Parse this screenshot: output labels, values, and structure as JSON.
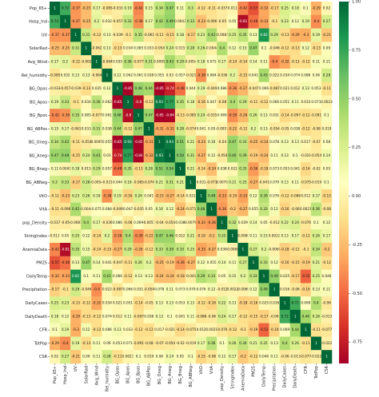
{
  "chart_data": {
    "type": "heatmap",
    "x_categories": [
      "Pop_65+",
      "Hosp_Ind",
      "UV",
      "SolarRad",
      "Avg_Wind",
      "Rel_humidity",
      "BG_Opos",
      "BG_Apos",
      "BG_Bpos",
      "BG_ABPos",
      "BG_Oneg",
      "BG_Aneg",
      "BG_Bneg",
      "BG_ABNeg",
      "VitD",
      "VitA",
      "pop_Density",
      "StringIndex",
      "AnemiaData",
      "PM25",
      "DailyTemp",
      "Precipitation",
      "DailyCases",
      "DailyDeath",
      "CFR",
      "TotPop",
      "CSR"
    ],
    "y_categories": [
      "Pop_65+",
      "Hosp_Ind",
      "UV",
      "SolarRad",
      "Avg_Wind",
      "Rel_humidity",
      "BG_Opos",
      "BG_Apos",
      "BG_Bpos",
      "BG_ABPos",
      "BG_Oneg",
      "BG_Aneg",
      "BG_Bneg",
      "BG_ABNeg",
      "VitD",
      "VitA",
      "pop_Density",
      "StringIndex",
      "AnemiaData",
      "PM25",
      "DailyTemp",
      "Precipitation",
      "DailyCases",
      "DailyDeath",
      "CFR",
      "TotPop",
      "CSR"
    ],
    "values": [
      [
        1,
        0.72,
        -0.37,
        -0.25,
        0.17,
        -0.085,
        -0.033,
        0.19,
        -0.42,
        0.15,
        0.34,
        0.47,
        0.11,
        0.3,
        -0.12,
        -0.11,
        -0.037,
        0.011,
        -0.42,
        -0.57,
        -0.32,
        -0.17,
        0.25,
        0.18,
        0.1,
        -0.29,
        0.02
      ],
      [
        0.72,
        1,
        -0.37,
        -0.25,
        0.2,
        0.032,
        -0.057,
        0.33,
        -0.38,
        0.17,
        0.42,
        0.49,
        0.0043,
        0.33,
        -0.23,
        -0.096,
        -0.05,
        0.05,
        -0.81,
        -0.48,
        -0.33,
        -0.1,
        0.23,
        0.12,
        0.19,
        -0.4,
        0.27
      ],
      [
        -0.37,
        -0.37,
        1,
        0.31,
        -0.12,
        0.13,
        -0.039,
        -0.1,
        0.35,
        -0.061,
        -0.11,
        -0.15,
        0.18,
        -0.17,
        0.23,
        0.42,
        -0.0081,
        0.25,
        0.35,
        0.13,
        0.82,
        0.29,
        -0.13,
        -0.29,
        -0.3,
        0.19,
        -0.21
      ],
      [
        -0.25,
        -0.25,
        0.31,
        1,
        -0.062,
        0.13,
        -0.13,
        0.034,
        0.085,
        0.033,
        -0.054,
        0.24,
        0.015,
        0.28,
        0.26,
        -0.0044,
        0.4,
        0.12,
        0.15,
        0.47,
        0.1,
        -0.046,
        -0.12,
        -0.13,
        0.12,
        -0.13,
        0.09
      ],
      [
        0.17,
        0.2,
        -0.12,
        -0.062,
        1,
        -0.064,
        0.035,
        0.36,
        -0.077,
        0.31,
        0.0095,
        0.43,
        0.29,
        -0.0054,
        0.18,
        0.075,
        0.17,
        -0.14,
        -0.14,
        0.14,
        0.11,
        -0.4,
        -0.32,
        -0.12,
        -0.12,
        0.11,
        0.11
      ],
      [
        -0.085,
        0.032,
        0.13,
        0.13,
        -0.064,
        1,
        0.12,
        0.062,
        0.061,
        0.038,
        0.055,
        0.03,
        0.057,
        -0.021,
        -0.38,
        0.084,
        -0.036,
        0.2,
        -0.15,
        0.041,
        0.43,
        0.022,
        0.034,
        0.074,
        0.086,
        0.06,
        0.28
      ],
      [
        -0.033,
        -0.057,
        -0.039,
        -0.13,
        0.035,
        0.12,
        1,
        -0.85,
        0.48,
        0.44,
        -0.85,
        -0.74,
        -0.48,
        0.044,
        0.19,
        -0.049,
        0.086,
        -0.36,
        -0.27,
        -0.047,
        0.066,
        -0.087,
        0.021,
        0.012,
        0.13,
        0.053,
        -0.11
      ],
      [
        0.19,
        0.33,
        -0.1,
        0.034,
        0.36,
        0.062,
        -0.85,
        1,
        -0.8,
        -0.12,
        0.93,
        0.77,
        0.35,
        0.18,
        -0.16,
        0.047,
        -0.08,
        0.4,
        0.29,
        -0.11,
        -0.12,
        0.066,
        0.051,
        0.11,
        0.033,
        0.071,
        0.0023
      ],
      [
        -0.42,
        -0.38,
        0.35,
        0.085,
        -0.077,
        0.061,
        0.48,
        -0.8,
        1,
        0.47,
        -0.85,
        -0.84,
        -0.13,
        -0.085,
        0.24,
        -0.035,
        0.069,
        -0.39,
        -0.26,
        0.26,
        0.13,
        0.031,
        -0.14,
        -0.097,
        -0.12,
        -0.091,
        0.1
      ],
      [
        0.15,
        0.17,
        -0.061,
        0.033,
        0.31,
        0.038,
        0.44,
        -0.12,
        0.47,
        1,
        -0.31,
        -0.32,
        0.28,
        -0.074,
        0.041,
        0.05,
        -0.0057,
        -0.22,
        -0.12,
        0.2,
        0.13,
        -0.054,
        -0.05,
        0.038,
        -0.12,
        -0.08,
        0.019
      ],
      [
        0.34,
        0.42,
        -0.11,
        -0.054,
        0.0095,
        0.055,
        -0.85,
        0.93,
        -0.85,
        -0.31,
        1,
        0.93,
        0.51,
        0.21,
        -0.23,
        0.16,
        -0.04,
        0.47,
        0.33,
        -0.25,
        -0.24,
        0.078,
        0.13,
        0.13,
        0.017,
        -0.07,
        0.08
      ],
      [
        0.47,
        0.49,
        -0.15,
        0.24,
        0.43,
        0.03,
        -0.74,
        0.77,
        -0.84,
        -0.32,
        0.93,
        1,
        0.54,
        0.31,
        -0.27,
        0.12,
        -0.054,
        0.46,
        0.39,
        -0.19,
        -0.24,
        0.11,
        0.13,
        0.1,
        -0.021,
        -0.054,
        0.14
      ],
      [
        0.11,
        0.0043,
        0.18,
        0.015,
        0.29,
        0.057,
        -0.48,
        0.35,
        -0.13,
        0.28,
        0.51,
        0.54,
        1,
        0.21,
        -0.14,
        -0.24,
        0.038,
        0.022,
        0.33,
        -0.36,
        -0.18,
        0.073,
        0.053,
        0.041,
        -0.14,
        -0.02,
        0.05
      ],
      [
        0.3,
        0.33,
        -0.17,
        0.28,
        -0.0054,
        -0.021,
        0.044,
        0.18,
        -0.085,
        -0.074,
        0.21,
        0.31,
        0.21,
        1,
        0.031,
        -0.071,
        0.0079,
        0.21,
        0.25,
        -0.27,
        -0.041,
        0.079,
        0.13,
        0.11,
        -0.075,
        -0.019,
        0.1
      ],
      [
        -0.12,
        -0.23,
        0.23,
        0.26,
        0.18,
        -0.38,
        0.19,
        -0.16,
        0.24,
        0.041,
        -0.23,
        -0.27,
        -0.14,
        0.031,
        1,
        0.48,
        -0.33,
        -0.19,
        -0.33,
        0.12,
        0.39,
        0.076,
        -0.12,
        -0.086,
        0.012,
        0.17,
        -0.15
      ],
      [
        -0.11,
        -0.096,
        0.42,
        -0.0044,
        0.075,
        0.084,
        -0.049,
        0.047,
        -0.035,
        0.05,
        0.16,
        0.12,
        -0.24,
        -0.071,
        0.48,
        1,
        -0.36,
        -0.2,
        -0.27,
        0.055,
        0.33,
        0.12,
        -0.16,
        -0.06,
        0.0021,
        0.36,
        -0.08
      ],
      [
        -0.037,
        -0.05,
        -0.0081,
        0.4,
        0.17,
        -0.036,
        0.086,
        -0.08,
        0.069,
        -0.0057,
        -0.04,
        -0.054,
        0.038,
        0.0079,
        -0.33,
        -0.36,
        1,
        0.32,
        0.039,
        0.14,
        0.05,
        -0.012,
        0.22,
        0.24,
        -0.076,
        0.1,
        0.12
      ],
      [
        0.011,
        0.05,
        0.25,
        0.12,
        -0.14,
        0.2,
        -0.36,
        0.4,
        -0.39,
        -0.22,
        0.47,
        0.46,
        0.022,
        0.21,
        -0.19,
        -0.2,
        0.32,
        1,
        -0.0069,
        0.11,
        0.15,
        0.0022,
        0.13,
        0.17,
        -0.12,
        0.26,
        0.17
      ],
      [
        -0.42,
        -0.81,
        0.35,
        0.15,
        -0.14,
        -0.15,
        -0.27,
        0.29,
        -0.26,
        -0.12,
        0.33,
        0.39,
        0.33,
        0.25,
        -0.33,
        -0.27,
        0.039,
        -0.0069,
        1,
        0.27,
        0.2,
        -0.0069,
        -0.18,
        -0.12,
        -0.1,
        0.34,
        -0.2
      ],
      [
        -0.57,
        -0.48,
        0.13,
        0.47,
        0.14,
        0.041,
        -0.047,
        -0.11,
        0.26,
        0.2,
        -0.25,
        -0.19,
        -0.36,
        -0.27,
        0.12,
        0.055,
        0.14,
        0.11,
        0.27,
        1,
        0.33,
        0.12,
        -0.16,
        -0.15,
        -0.19,
        0.21,
        -0.12
      ],
      [
        -0.32,
        -0.33,
        0.82,
        0.1,
        0.11,
        0.43,
        0.066,
        -0.12,
        0.13,
        0.13,
        -0.24,
        -0.24,
        -0.18,
        -0.041,
        0.39,
        0.33,
        0.05,
        0.15,
        0.2,
        0.33,
        1,
        0.49,
        0.025,
        -0.17,
        -0.52,
        0.25,
        0.046
      ],
      [
        -0.17,
        -0.1,
        0.29,
        -0.046,
        -0.4,
        0.022,
        -0.087,
        0.066,
        0.031,
        -0.054,
        0.078,
        0.11,
        0.073,
        0.079,
        0.076,
        0.12,
        -0.012,
        0.0022,
        -0.0069,
        0.12,
        0.49,
        1,
        0.016,
        -0.06,
        -0.16,
        0.13,
        0.11
      ],
      [
        0.25,
        0.23,
        -0.13,
        -0.12,
        -0.32,
        0.034,
        0.021,
        0.051,
        -0.14,
        -0.05,
        0.13,
        0.13,
        0.053,
        0.13,
        -0.12,
        -0.16,
        0.22,
        0.13,
        -0.18,
        -0.16,
        0.025,
        0.016,
        1,
        0.72,
        0.069,
        0.4,
        -0.06
      ],
      [
        0.18,
        0.12,
        -0.29,
        -0.13,
        -0.12,
        0.074,
        0.012,
        0.11,
        -0.097,
        0.038,
        0.13,
        0.1,
        0.041,
        0.11,
        -0.086,
        -0.06,
        0.24,
        0.17,
        -0.12,
        -0.15,
        -0.17,
        -0.06,
        0.72,
        1,
        0.44,
        0.26,
        -0.013
      ],
      [
        0.1,
        0.19,
        -0.3,
        0.12,
        -0.12,
        0.086,
        0.13,
        0.033,
        -0.12,
        -0.12,
        0.017,
        -0.021,
        -0.14,
        -0.075,
        0.012,
        0.0021,
        -0.076,
        -0.12,
        -0.1,
        -0.19,
        -0.52,
        -0.16,
        0.069,
        0.44,
        1,
        -0.11,
        -0.077
      ],
      [
        -0.29,
        -0.4,
        0.19,
        -0.13,
        0.11,
        0.06,
        0.053,
        0.071,
        -0.091,
        -0.08,
        -0.07,
        -0.054,
        -0.02,
        -0.019,
        0.17,
        0.36,
        0.1,
        0.26,
        0.34,
        0.21,
        0.25,
        0.13,
        0.4,
        0.26,
        -0.11,
        1,
        -0.022
      ],
      [
        0.02,
        0.27,
        -0.21,
        0.09,
        0.11,
        0.28,
        -0.11,
        0.0023,
        0.1,
        0.019,
        0.08,
        0.14,
        0.05,
        0.1,
        -0.15,
        -0.08,
        0.12,
        0.17,
        -0.2,
        -0.12,
        0.046,
        0.11,
        -0.06,
        -0.013,
        -0.077,
        -0.022,
        1
      ]
    ],
    "colormap": "RdYlGn",
    "clim": [
      -0.86,
      1
    ],
    "cticks": [
      {
        "value": 1,
        "label": "1.00"
      },
      {
        "value": 0.75,
        "label": "0.75"
      },
      {
        "value": 0.5,
        "label": "0.50"
      },
      {
        "value": 0.25,
        "label": "0.25"
      },
      {
        "value": 0,
        "label": "0.00"
      },
      {
        "value": -0.25,
        "label": "-0.25"
      },
      {
        "value": -0.5,
        "label": "-0.50"
      },
      {
        "value": -0.75,
        "label": "-0.75"
      }
    ],
    "annotate": true
  }
}
